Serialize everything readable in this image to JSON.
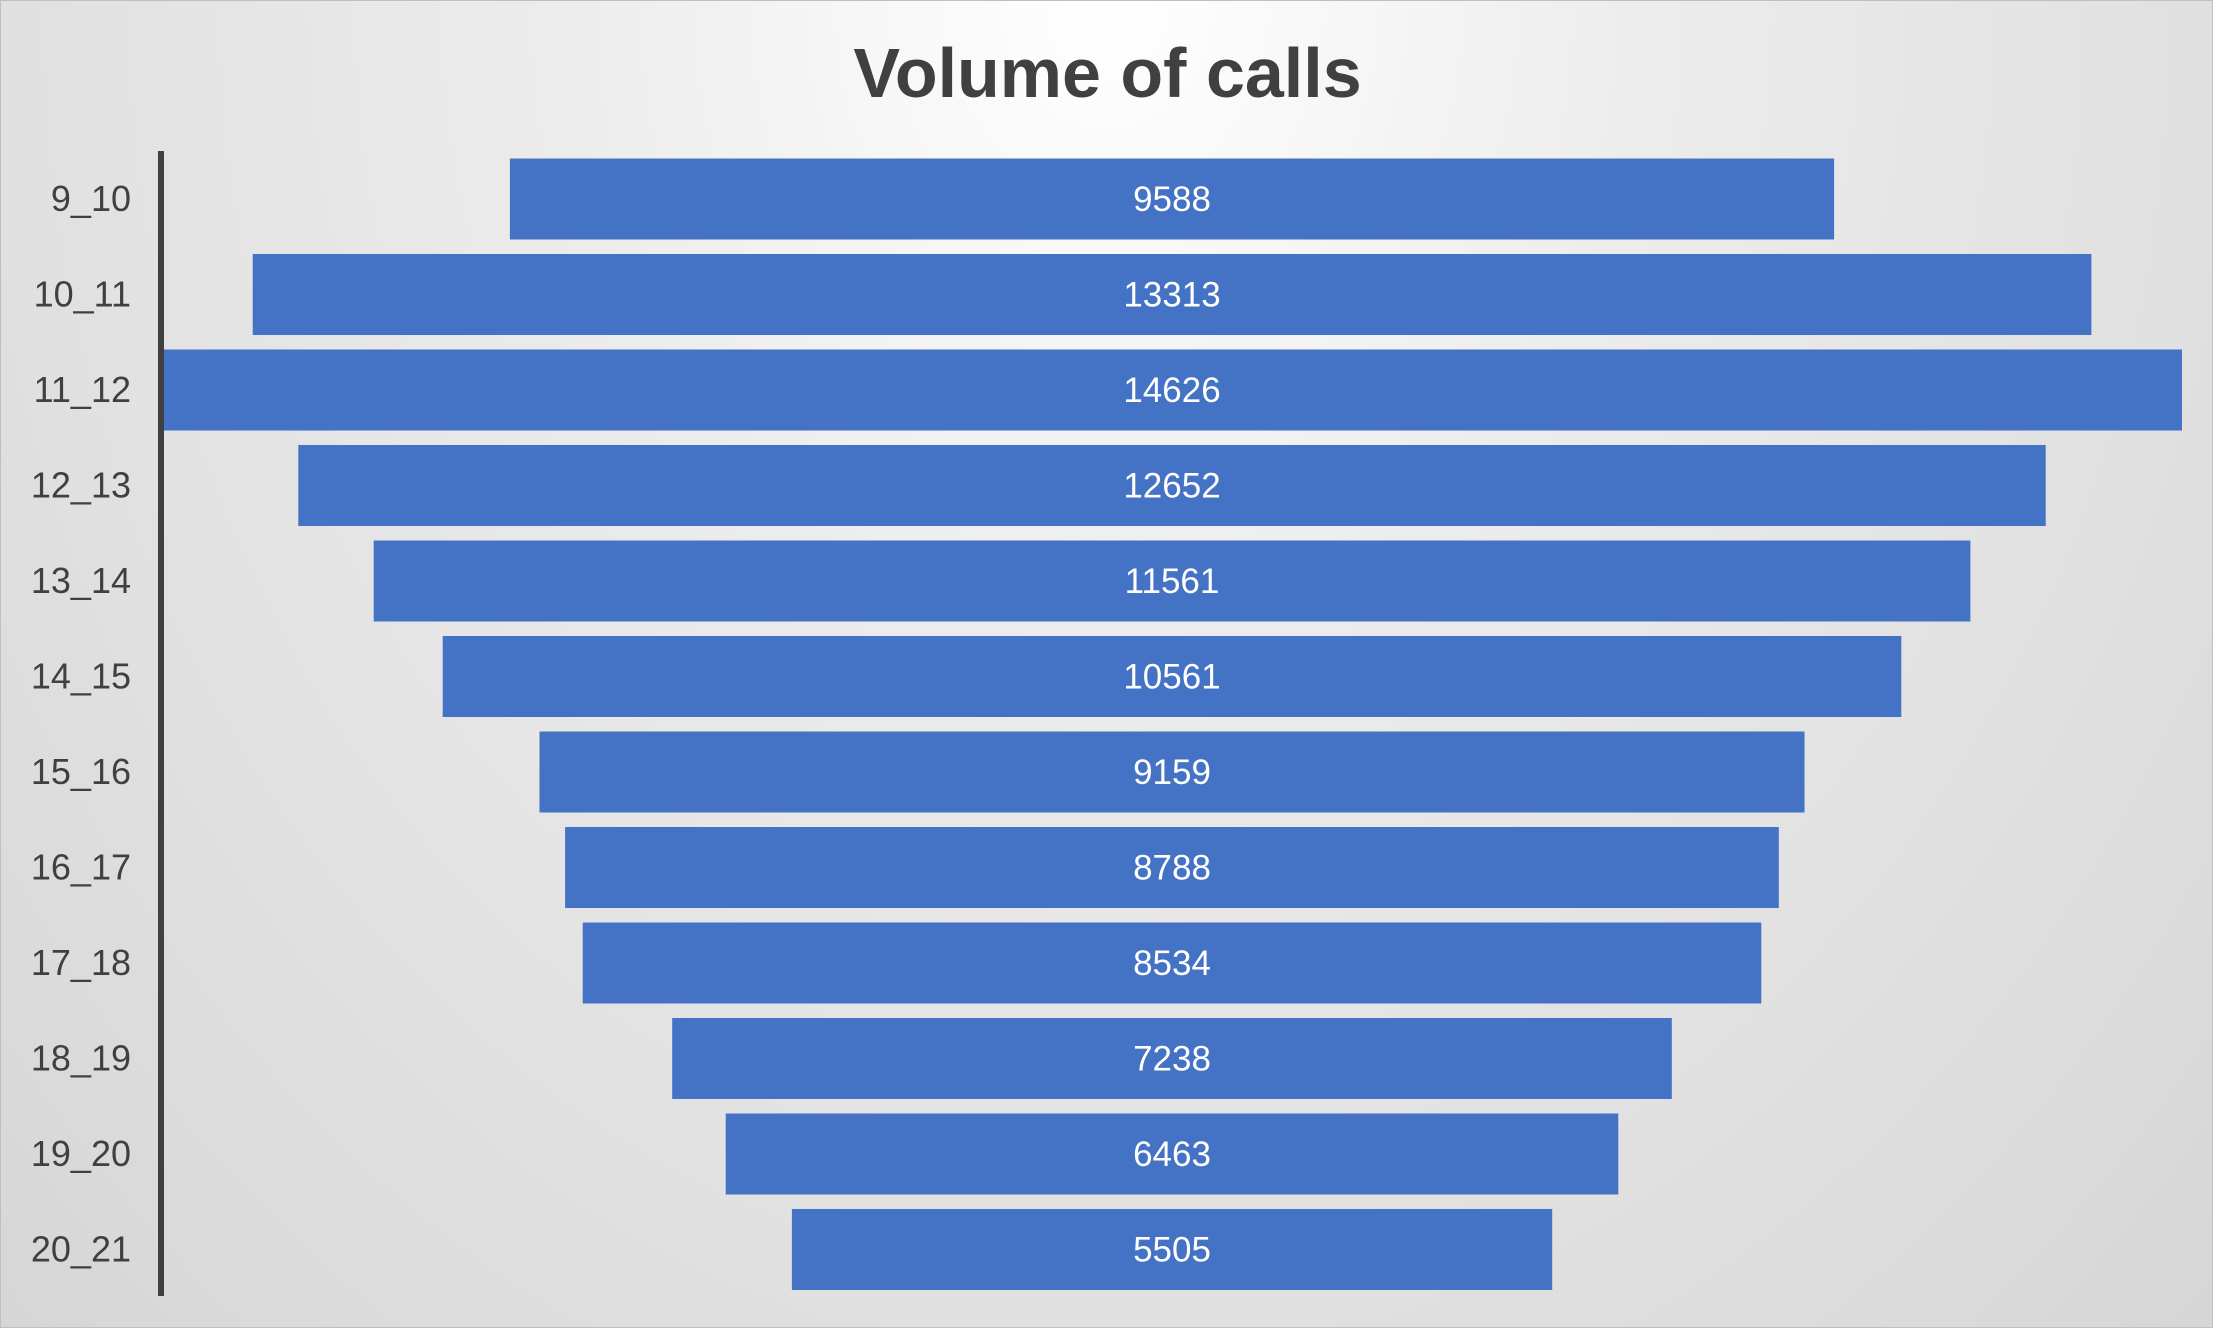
{
  "chart_data": {
    "type": "bar",
    "orientation": "horizontal-funnel",
    "title": "Volume of calls",
    "categories": [
      "9_10",
      "10_11",
      "11_12",
      "12_13",
      "13_14",
      "14_15",
      "15_16",
      "16_17",
      "17_18",
      "18_19",
      "19_20",
      "20_21"
    ],
    "values": [
      9588,
      13313,
      14626,
      12652,
      11561,
      10561,
      9159,
      8788,
      8534,
      7238,
      6463,
      5505
    ],
    "xlabel": "",
    "ylabel": "",
    "grid": false,
    "legend": "none",
    "bar_color": "#4472c4",
    "axis_color": "#404040"
  }
}
